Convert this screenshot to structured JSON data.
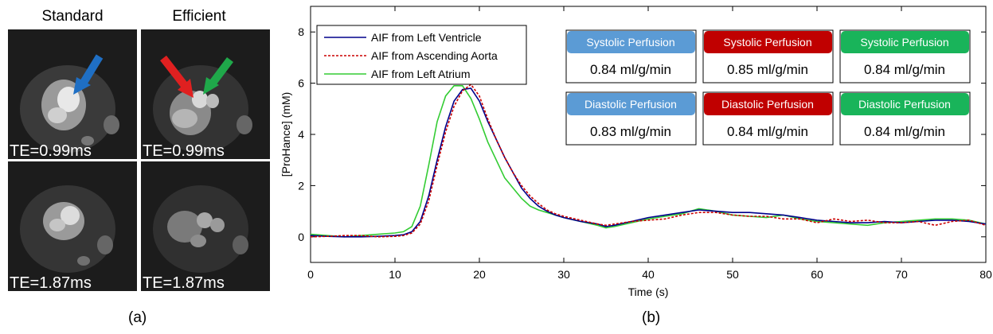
{
  "panel_a": {
    "label": "(a)",
    "columns": [
      "Standard",
      "Efficient"
    ],
    "te_labels": [
      [
        "TE=0.99ms",
        "TE=0.99ms"
      ],
      [
        "TE=1.87ms",
        "TE=1.87ms"
      ]
    ],
    "arrows": [
      {
        "color": "#1f6fc4",
        "panel": "standard-top"
      },
      {
        "color": "#e02020",
        "panel": "efficient-top"
      },
      {
        "color": "#1fa84a",
        "panel": "efficient-top"
      }
    ]
  },
  "panel_b_label": "(b)",
  "chart_data": {
    "type": "line",
    "xlabel": "Time (s)",
    "ylabel": "[ProHance] (mM)",
    "xlim": [
      0,
      80
    ],
    "ylim": [
      -1,
      9
    ],
    "xticks": [
      0,
      10,
      20,
      30,
      40,
      50,
      60,
      70,
      80
    ],
    "yticks": [
      0,
      2,
      4,
      6,
      8
    ],
    "legend_position": "top-left",
    "series": [
      {
        "name": "AIF from Left Ventricle",
        "color": "#00008b",
        "style": "solid",
        "x": [
          0,
          2,
          4,
          6,
          8,
          10,
          11,
          12,
          13,
          14,
          15,
          16,
          17,
          18,
          19,
          20,
          21,
          22,
          23,
          24,
          25,
          26,
          27,
          28,
          29,
          30,
          32,
          34,
          35,
          36,
          38,
          40,
          42,
          44,
          46,
          48,
          50,
          52,
          54,
          56,
          58,
          60,
          62,
          64,
          66,
          68,
          70,
          72,
          74,
          76,
          78,
          80
        ],
        "y": [
          0.05,
          0.02,
          0.0,
          0.0,
          0.02,
          0.05,
          0.08,
          0.2,
          0.6,
          1.6,
          3.0,
          4.3,
          5.3,
          5.75,
          5.8,
          5.3,
          4.5,
          3.8,
          3.1,
          2.5,
          1.9,
          1.5,
          1.2,
          1.0,
          0.85,
          0.75,
          0.6,
          0.5,
          0.4,
          0.45,
          0.6,
          0.75,
          0.85,
          0.95,
          1.05,
          1.0,
          0.95,
          0.95,
          0.9,
          0.85,
          0.75,
          0.65,
          0.6,
          0.55,
          0.55,
          0.6,
          0.55,
          0.6,
          0.65,
          0.65,
          0.6,
          0.5
        ]
      },
      {
        "name": "AIF from Ascending Aorta",
        "color": "#cc0000",
        "style": "dashed",
        "x": [
          0,
          2,
          4,
          6,
          8,
          10,
          11,
          12,
          13,
          14,
          15,
          16,
          17,
          18,
          19,
          20,
          21,
          22,
          23,
          24,
          25,
          26,
          27,
          28,
          29,
          30,
          32,
          34,
          35,
          36,
          38,
          40,
          42,
          44,
          46,
          48,
          50,
          52,
          54,
          56,
          58,
          60,
          62,
          64,
          66,
          68,
          70,
          72,
          74,
          76,
          78,
          80
        ],
        "y": [
          0.0,
          0.02,
          0.05,
          0.05,
          0.0,
          0.02,
          0.05,
          0.15,
          0.5,
          1.4,
          2.8,
          4.1,
          5.1,
          5.7,
          5.95,
          5.5,
          4.6,
          3.8,
          3.1,
          2.5,
          2.0,
          1.6,
          1.3,
          1.05,
          0.9,
          0.8,
          0.65,
          0.5,
          0.45,
          0.5,
          0.6,
          0.65,
          0.7,
          0.85,
          0.95,
          0.95,
          0.85,
          0.8,
          0.8,
          0.7,
          0.7,
          0.55,
          0.7,
          0.6,
          0.65,
          0.55,
          0.55,
          0.6,
          0.45,
          0.6,
          0.65,
          0.45
        ]
      },
      {
        "name": "AIF from Left Atrium",
        "color": "#33cc33",
        "style": "solid",
        "x": [
          0,
          2,
          4,
          6,
          8,
          10,
          11,
          12,
          13,
          14,
          15,
          16,
          17,
          18,
          19,
          20,
          21,
          22,
          23,
          24,
          25,
          26,
          27,
          28,
          29,
          30,
          32,
          34,
          35,
          36,
          38,
          40,
          42,
          44,
          46,
          48,
          50,
          52,
          54,
          56,
          58,
          60,
          62,
          64,
          66,
          68,
          70,
          72,
          74,
          76,
          78,
          80
        ],
        "y": [
          0.1,
          0.05,
          0.0,
          0.05,
          0.1,
          0.15,
          0.2,
          0.4,
          1.2,
          2.8,
          4.5,
          5.5,
          5.9,
          5.9,
          5.4,
          4.6,
          3.7,
          3.0,
          2.3,
          1.9,
          1.5,
          1.2,
          1.05,
          0.95,
          0.85,
          0.75,
          0.6,
          0.45,
          0.35,
          0.4,
          0.55,
          0.7,
          0.8,
          0.9,
          1.1,
          1.0,
          0.85,
          0.8,
          0.75,
          0.85,
          0.7,
          0.6,
          0.55,
          0.5,
          0.45,
          0.55,
          0.6,
          0.65,
          0.7,
          0.7,
          0.65,
          0.5
        ]
      }
    ],
    "perfusion_boxes": [
      {
        "title": "Systolic Perfusion",
        "value": "0.84 ml/g/min",
        "color": "#5b9bd5"
      },
      {
        "title": "Systolic Perfusion",
        "value": "0.85 ml/g/min",
        "color": "#c00000"
      },
      {
        "title": "Systolic Perfusion",
        "value": "0.84 ml/g/min",
        "color": "#19b45a"
      },
      {
        "title": "Diastolic Perfusion",
        "value": "0.83 ml/g/min",
        "color": "#5b9bd5"
      },
      {
        "title": "Diastolic Perfusion",
        "value": "0.84 ml/g/min",
        "color": "#c00000"
      },
      {
        "title": "Diastolic Perfusion",
        "value": "0.84 ml/g/min",
        "color": "#19b45a"
      }
    ]
  }
}
